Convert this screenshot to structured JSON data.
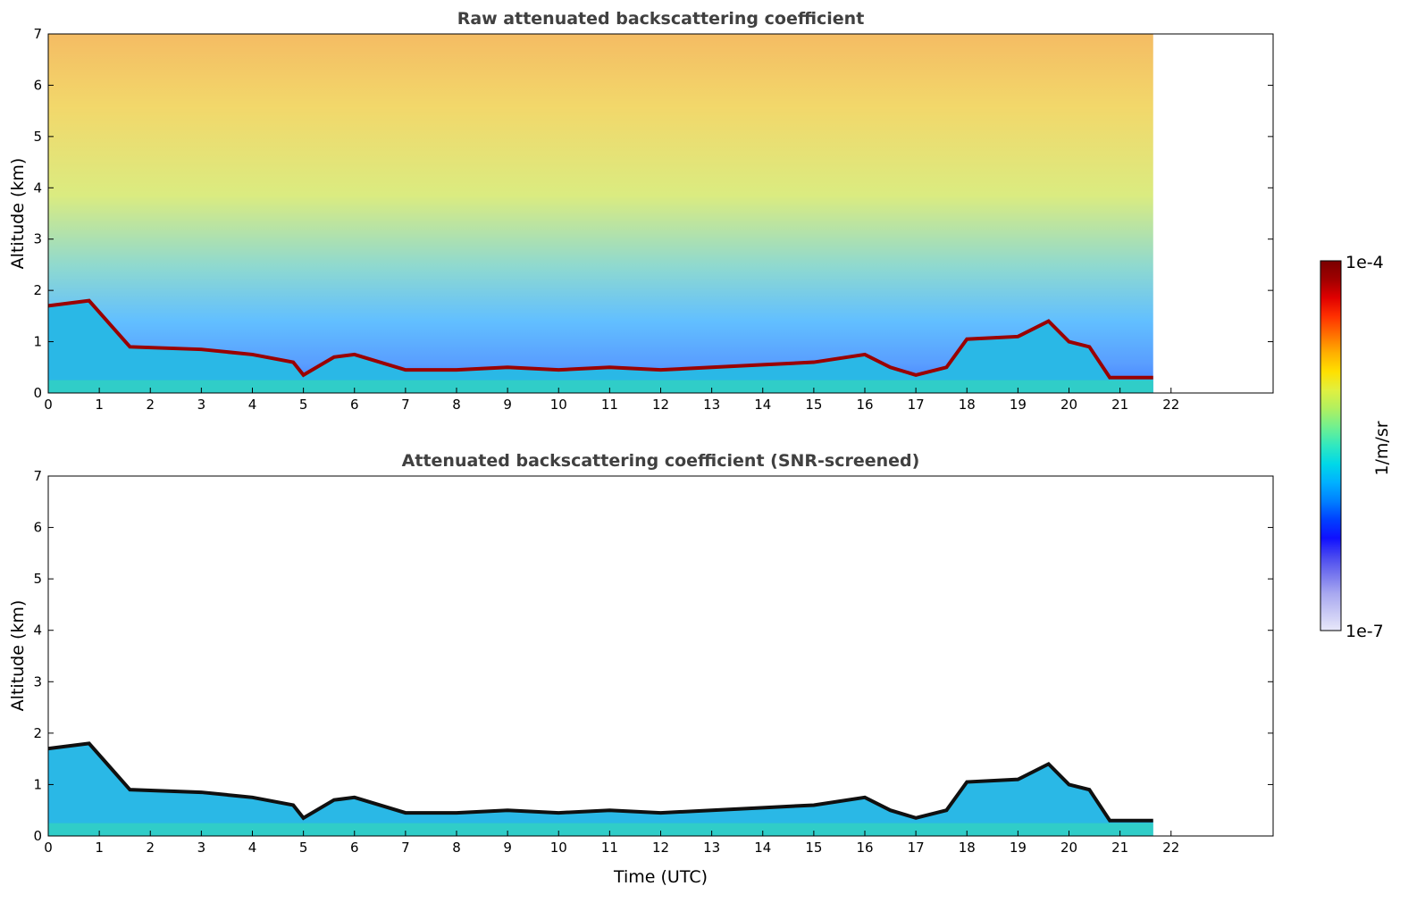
{
  "chart_data": [
    {
      "type": "heatmap",
      "title": "Raw attenuated backscattering coefficient",
      "xlabel": "",
      "ylabel": "Altitude (km)",
      "xlim": [
        0,
        24
      ],
      "ylim": [
        0,
        7
      ],
      "xticks": [
        "0",
        "1",
        "2",
        "3",
        "4",
        "5",
        "6",
        "7",
        "8",
        "9",
        "10",
        "11",
        "12",
        "13",
        "14",
        "15",
        "16",
        "17",
        "18",
        "19",
        "20",
        "21",
        "22"
      ],
      "yticks": [
        "0",
        "1",
        "2",
        "3",
        "4",
        "5",
        "6",
        "7"
      ],
      "data_time_range": [
        0,
        21.65
      ],
      "screened": false,
      "layer_top_km": [
        [
          0,
          1.7
        ],
        [
          0.8,
          1.8
        ],
        [
          1.6,
          0.9
        ],
        [
          3,
          0.85
        ],
        [
          4,
          0.75
        ],
        [
          4.8,
          0.6
        ],
        [
          5,
          0.35
        ],
        [
          5.6,
          0.7
        ],
        [
          6,
          0.75
        ],
        [
          7,
          0.45
        ],
        [
          8,
          0.45
        ],
        [
          9,
          0.5
        ],
        [
          10,
          0.45
        ],
        [
          11,
          0.5
        ],
        [
          12,
          0.45
        ],
        [
          13,
          0.5
        ],
        [
          14,
          0.55
        ],
        [
          15,
          0.6
        ],
        [
          16,
          0.75
        ],
        [
          16.5,
          0.5
        ],
        [
          17,
          0.35
        ],
        [
          17.6,
          0.5
        ],
        [
          18,
          1.05
        ],
        [
          19,
          1.1
        ],
        [
          19.6,
          1.4
        ],
        [
          20,
          1.0
        ],
        [
          20.4,
          0.9
        ],
        [
          20.8,
          0.3
        ],
        [
          21.65,
          0.3
        ]
      ]
    },
    {
      "type": "heatmap",
      "title": "Attenuated backscattering coefficient (SNR-screened)",
      "xlabel": "Time (UTC)",
      "ylabel": "Altitude (km)",
      "xlim": [
        0,
        24
      ],
      "ylim": [
        0,
        7
      ],
      "xticks": [
        "0",
        "1",
        "2",
        "3",
        "4",
        "5",
        "6",
        "7",
        "8",
        "9",
        "10",
        "11",
        "12",
        "13",
        "14",
        "15",
        "16",
        "17",
        "18",
        "19",
        "20",
        "21",
        "22"
      ],
      "yticks": [
        "0",
        "1",
        "2",
        "3",
        "4",
        "5",
        "6",
        "7"
      ],
      "data_time_range": [
        0,
        21.65
      ],
      "screened": true,
      "layer_top_km": [
        [
          0,
          1.7
        ],
        [
          0.8,
          1.8
        ],
        [
          1.6,
          0.9
        ],
        [
          3,
          0.85
        ],
        [
          4,
          0.75
        ],
        [
          4.8,
          0.6
        ],
        [
          5,
          0.35
        ],
        [
          5.6,
          0.7
        ],
        [
          6,
          0.75
        ],
        [
          7,
          0.45
        ],
        [
          8,
          0.45
        ],
        [
          9,
          0.5
        ],
        [
          10,
          0.45
        ],
        [
          11,
          0.5
        ],
        [
          12,
          0.45
        ],
        [
          13,
          0.5
        ],
        [
          14,
          0.55
        ],
        [
          15,
          0.6
        ],
        [
          16,
          0.75
        ],
        [
          16.5,
          0.5
        ],
        [
          17,
          0.35
        ],
        [
          17.6,
          0.5
        ],
        [
          18,
          1.05
        ],
        [
          19,
          1.1
        ],
        [
          19.6,
          1.4
        ],
        [
          20,
          1.0
        ],
        [
          20.4,
          0.9
        ],
        [
          20.8,
          0.3
        ],
        [
          21.65,
          0.3
        ]
      ]
    }
  ],
  "colorbar": {
    "label": "1/m/sr",
    "max_label": "1e-4",
    "min_label": "1e-7",
    "range": [
      1e-07,
      0.0001
    ],
    "scale": "log",
    "colors": [
      "#e8e8fa",
      "#c8c8f4",
      "#a8a8f0",
      "#7878ee",
      "#4848f0",
      "#1010ff",
      "#0040ff",
      "#0080ff",
      "#00b0ff",
      "#00d8e8",
      "#30e8c0",
      "#70f090",
      "#b0f060",
      "#e0f040",
      "#ffe000",
      "#ffb000",
      "#ff7000",
      "#ff3000",
      "#e00000",
      "#a00000",
      "#7a0000"
    ]
  }
}
